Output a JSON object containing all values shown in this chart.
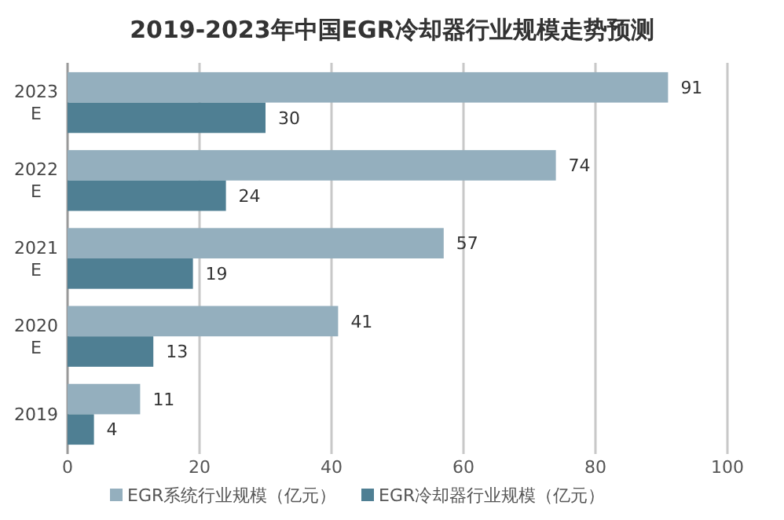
{
  "chart_data": {
    "type": "bar",
    "orientation": "horizontal",
    "title": "2019-2023年中国EGR冷却器行业规模走势预测",
    "categories": [
      "2023 E",
      "2022 E",
      "2021 E",
      "2020 E",
      "2019"
    ],
    "series": [
      {
        "name": "EGR系统行业规模（亿元）",
        "color": "#94afbe",
        "values": [
          91,
          74,
          57,
          41,
          11
        ]
      },
      {
        "name": "EGR冷却器行业规模（亿元）",
        "color": "#4f7f93",
        "values": [
          30,
          24,
          19,
          13,
          4
        ]
      }
    ],
    "xlim": [
      0,
      100
    ],
    "xticks": [
      0,
      20,
      40,
      60,
      80,
      100
    ],
    "grid": "x",
    "legend": "bottom",
    "data_labels": true
  }
}
